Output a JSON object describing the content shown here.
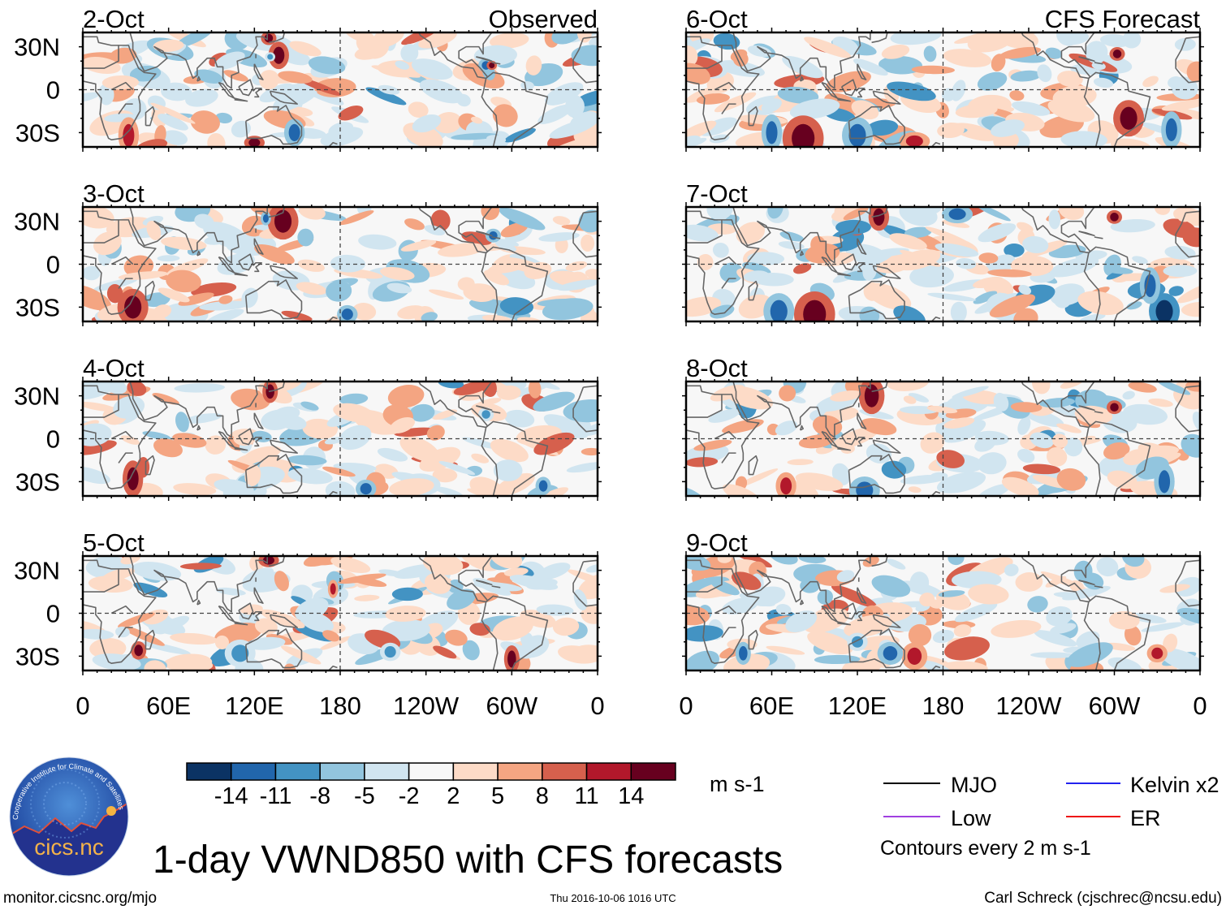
{
  "chart_data": {
    "type": "heatmap",
    "title": "1-day VWND850 with CFS forecasts",
    "units": "m s-1",
    "panels": [
      {
        "date": "2-Oct",
        "label": "Observed"
      },
      {
        "date": "3-Oct",
        "label": ""
      },
      {
        "date": "4-Oct",
        "label": ""
      },
      {
        "date": "5-Oct",
        "label": ""
      },
      {
        "date": "6-Oct",
        "label": "CFS Forecast"
      },
      {
        "date": "7-Oct",
        "label": ""
      },
      {
        "date": "8-Oct",
        "label": ""
      },
      {
        "date": "9-Oct",
        "label": ""
      }
    ],
    "xticks": [
      "0",
      "60E",
      "120E",
      "180",
      "120W",
      "60W",
      "0"
    ],
    "yticks": [
      "30N",
      "0",
      "30S"
    ],
    "xlim": [
      0,
      360
    ],
    "ylim": [
      -40,
      40
    ],
    "colorbar": {
      "levels": [
        "-14",
        "-11",
        "-8",
        "-5",
        "-2",
        "2",
        "5",
        "8",
        "11",
        "14"
      ],
      "colors": [
        "#0b3364",
        "#2166ac",
        "#4393c3",
        "#92c5de",
        "#d1e5f0",
        "#f7f7f7",
        "#fddbc7",
        "#f4a582",
        "#d6604d",
        "#b2182b",
        "#67001f"
      ],
      "units": "m s-1"
    },
    "legend": [
      {
        "label": "MJO",
        "color": "#000000"
      },
      {
        "label": "Kelvin x2",
        "color": "#2222ee"
      },
      {
        "label": "Low",
        "color": "#a040e0"
      },
      {
        "label": "ER",
        "color": "#ee1111"
      }
    ],
    "contour_note": "Contours every 2 m s-1"
  },
  "footer": {
    "url": "monitor.cicsnc.org/mjo",
    "timestamp": "Thu 2016-10-06 1016 UTC",
    "author": "Carl Schreck (cjschrec@ncsu.edu)"
  },
  "logo": {
    "text": "cics.nc",
    "ring_text": "Cooperative Institute for Climate and Satellites"
  }
}
